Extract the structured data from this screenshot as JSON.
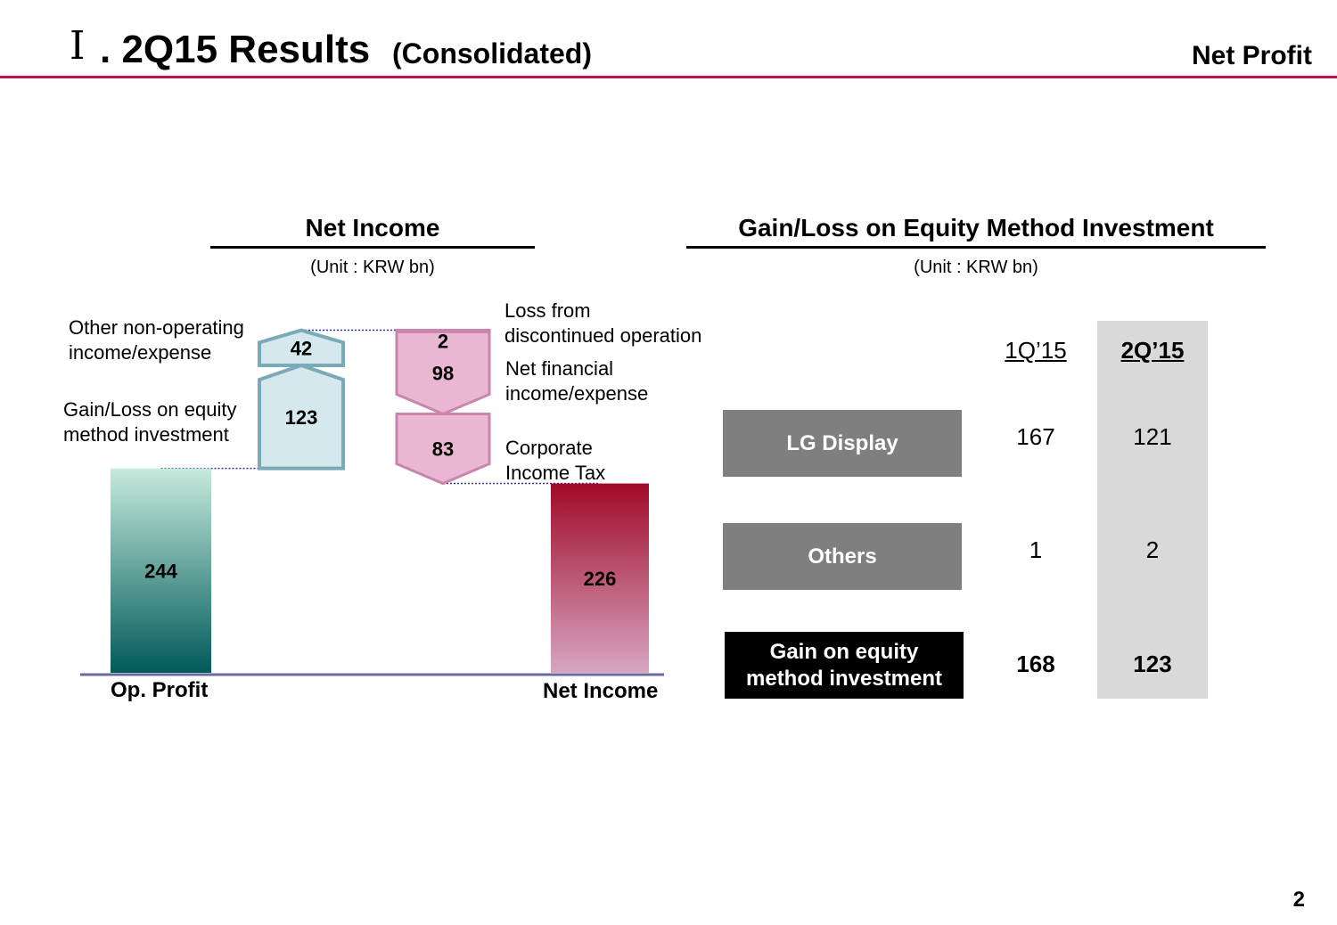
{
  "header": {
    "roman": "Ⅰ",
    "title": ". 2Q15 Results",
    "subtitle": "(Consolidated)",
    "section": "Net Profit"
  },
  "page_number": "2",
  "colors": {
    "accent": "#c0124c",
    "op_profit_top": "#c6eadc",
    "op_profit_bottom": "#005a5a",
    "increase_fill": "#d4e8ee",
    "increase_stroke": "#7aaab8",
    "decrease_fill": "#eab7d3",
    "decrease_stroke": "#c985ad",
    "net_income_top": "#a00a28",
    "net_income_bottom": "#d7a6c2",
    "row_gray": "#7f7f7f",
    "row_black": "#000000",
    "col_highlight": "#d9d9d9"
  },
  "chart_data": [
    {
      "type": "bar",
      "title": "Net Income",
      "unit": "(Unit : KRW bn)",
      "steps": [
        {
          "name": "Op. Profit",
          "value": 244,
          "label": "244",
          "kind": "total",
          "axis_label": "Op. Profit"
        },
        {
          "name": "Gain/Loss on equity method investment",
          "value": 123,
          "label": "123",
          "kind": "increase"
        },
        {
          "name": "Other non-operating income/expense",
          "value": 42,
          "label": "42",
          "kind": "increase"
        },
        {
          "name": "Loss from discontinued operation",
          "value": -2,
          "label": "2",
          "kind": "decrease"
        },
        {
          "name": "Net financial income/expense",
          "value": -98,
          "label": "98",
          "kind": "decrease"
        },
        {
          "name": "Corporate Income Tax",
          "value": -83,
          "label": "83",
          "kind": "decrease"
        },
        {
          "name": "Net Income",
          "value": 226,
          "label": "226",
          "kind": "total",
          "axis_label": "Net Income"
        }
      ],
      "annotations": {
        "other_nonop": [
          "Other non-operating",
          "income/expense"
        ],
        "equity": [
          "Gain/Loss on equity",
          "method investment"
        ],
        "discontinued": [
          "Loss from",
          "discontinued operation"
        ],
        "net_financial": [
          "Net financial",
          "income/expense"
        ],
        "tax": [
          "Corporate",
          "Income Tax"
        ]
      }
    },
    {
      "type": "table",
      "title": "Gain/Loss on Equity Method Investment",
      "unit": "(Unit : KRW bn)",
      "columns": [
        "1Q’15",
        "2Q’15"
      ],
      "rows": [
        {
          "label": [
            "LG Display"
          ],
          "values": [
            "167",
            "121"
          ]
        },
        {
          "label": [
            "Others"
          ],
          "values": [
            "1",
            "2"
          ]
        },
        {
          "label": [
            "Gain on equity",
            "method investment"
          ],
          "values": [
            "168",
            "123"
          ],
          "bold": true
        }
      ]
    }
  ]
}
